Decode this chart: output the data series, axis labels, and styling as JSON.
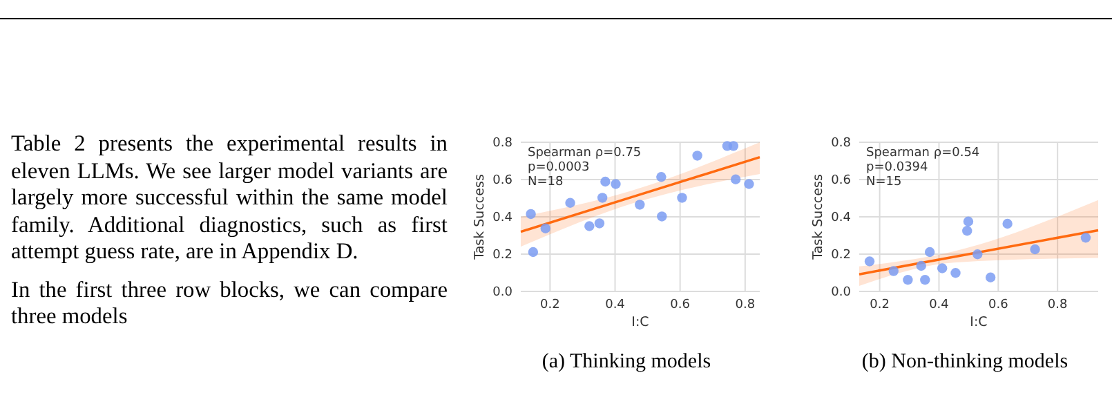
{
  "chart_data": [
    {
      "type": "other",
      "annotations": [
        "Table 2 presents the experimental results in eleven LLMs. We see larger model variants are largely more successful within the same model family. Additional diagnostics, such as first attempt guess rate, are in Appendix D.",
        "In the first three row blocks, we can compare three models"
      ]
    },
    {
      "type": "scatter",
      "title": "(a) Thinking models",
      "xlabel": "I:C",
      "ylabel": "Task Success",
      "xlim": [
        0.11,
        0.845
      ],
      "ylim": [
        0,
        0.8
      ],
      "xticks": [
        0.2,
        0.4,
        0.6,
        0.8
      ],
      "yticks": [
        {
          "value": 0,
          "label": "0.0"
        },
        0.2,
        0.4,
        0.6,
        0.8
      ],
      "grid": true,
      "annotations": [
        "Spearman ρ=0.75\np=0.0003\nN=18"
      ],
      "series": [
        {
          "type": "scatter",
          "marker": "circle",
          "color": "#7b9cf2",
          "x": [
            0.141,
            0.148,
            0.186,
            0.262,
            0.321,
            0.352,
            0.361,
            0.37,
            0.402,
            0.476,
            0.542,
            0.544,
            0.606,
            0.653,
            0.745,
            0.764,
            0.771,
            0.812
          ],
          "values": [
            0.415,
            0.211,
            0.338,
            0.475,
            0.35,
            0.365,
            0.502,
            0.589,
            0.576,
            0.465,
            0.614,
            0.402,
            0.502,
            0.728,
            0.78,
            0.78,
            0.601,
            0.576
          ]
        },
        {
          "type": "line",
          "color": "#ff6a10",
          "x": [
            0.11,
            0.45,
            0.845
          ],
          "values": [
            0.32,
            0.505,
            0.72
          ],
          "lower": [
            0.24,
            0.47,
            0.63
          ],
          "upper": [
            0.4,
            0.54,
            0.8
          ]
        }
      ]
    },
    {
      "type": "scatter",
      "title": "(b) Non-thinking models",
      "xlabel": "I:C",
      "ylabel": "Task Success",
      "xlim": [
        0.131,
        0.937
      ],
      "ylim": [
        0,
        0.8
      ],
      "xticks": [
        0.2,
        0.4,
        0.6,
        0.8
      ],
      "yticks": [
        {
          "value": 0,
          "label": "0.0"
        },
        0.2,
        0.4,
        0.6,
        0.8
      ],
      "grid": true,
      "annotations": [
        "Spearman ρ=0.54\np=0.0394\nN=15"
      ],
      "series": [
        {
          "type": "scatter",
          "marker": "circle",
          "color": "#7b9cf2",
          "x": [
            0.166,
            0.247,
            0.295,
            0.34,
            0.353,
            0.369,
            0.411,
            0.456,
            0.495,
            0.499,
            0.53,
            0.574,
            0.631,
            0.724,
            0.895
          ],
          "values": [
            0.161,
            0.109,
            0.062,
            0.137,
            0.062,
            0.211,
            0.124,
            0.099,
            0.325,
            0.375,
            0.199,
            0.075,
            0.363,
            0.226,
            0.288
          ]
        },
        {
          "type": "line",
          "color": "#ff6a10",
          "x": [
            0.131,
            0.45,
            0.937
          ],
          "values": [
            0.092,
            0.185,
            0.328
          ],
          "lower": [
            0.03,
            0.155,
            0.18
          ],
          "upper": [
            0.134,
            0.215,
            0.49
          ]
        }
      ]
    }
  ]
}
